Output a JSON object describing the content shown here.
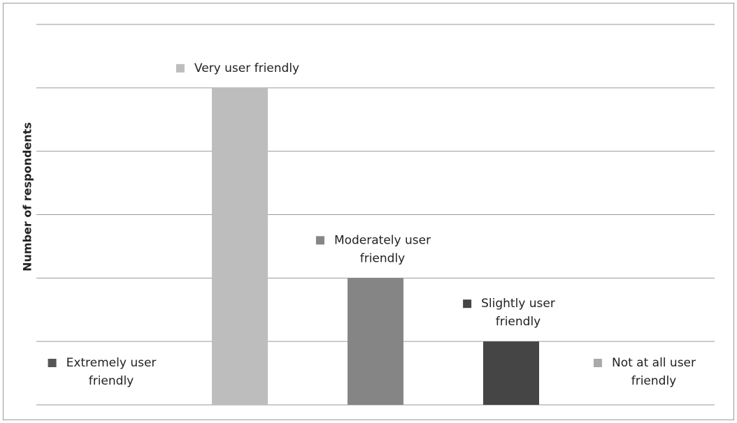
{
  "chart_data": {
    "type": "bar",
    "y_label": "Number of respondents",
    "categories": [
      "Extremely user friendly",
      "Very user friendly",
      "Moderately user friendly",
      "Slightly user friendly",
      "Not at all user friendly"
    ],
    "values": [
      0,
      5,
      2,
      1,
      0
    ],
    "colors": [
      "#555555",
      "#bdbdbd",
      "#858585",
      "#454545",
      "#aaaaaa"
    ],
    "ylim": [
      0,
      6
    ],
    "yticks": [
      0,
      1,
      2,
      3,
      4,
      5,
      6
    ],
    "grid": true
  }
}
